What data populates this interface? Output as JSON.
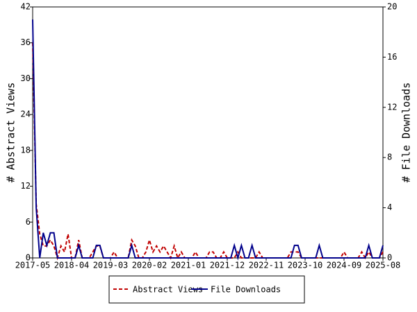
{
  "chart_data": {
    "type": "line",
    "ylabel": "# Abstract Views",
    "y2label": "# File Downloads",
    "x": [
      "2017-05",
      "2017-06",
      "2017-07",
      "2017-08",
      "2017-09",
      "2017-10",
      "2017-11",
      "2017-12",
      "2018-01",
      "2018-02",
      "2018-03",
      "2018-04",
      "2018-05",
      "2018-06",
      "2018-07",
      "2018-08",
      "2018-09",
      "2018-10",
      "2018-11",
      "2018-12",
      "2019-01",
      "2019-02",
      "2019-03",
      "2019-04",
      "2019-05",
      "2019-06",
      "2019-07",
      "2019-08",
      "2019-09",
      "2019-10",
      "2019-11",
      "2019-12",
      "2020-01",
      "2020-02",
      "2020-03",
      "2020-04",
      "2020-05",
      "2020-06",
      "2020-07",
      "2020-08",
      "2020-09",
      "2020-10",
      "2020-11",
      "2020-12",
      "2021-01",
      "2021-02",
      "2021-03",
      "2021-04",
      "2021-05",
      "2021-06",
      "2021-07",
      "2021-08",
      "2021-09",
      "2021-10",
      "2021-11",
      "2021-12",
      "2022-01",
      "2022-02",
      "2022-03",
      "2022-04",
      "2022-05",
      "2022-06",
      "2022-07",
      "2022-08",
      "2022-09",
      "2022-10",
      "2022-11",
      "2022-12",
      "2023-01",
      "2023-02",
      "2023-03",
      "2023-04",
      "2023-05",
      "2023-06",
      "2023-07",
      "2023-08",
      "2023-09",
      "2023-10",
      "2023-11",
      "2023-12",
      "2024-01",
      "2024-02",
      "2024-03",
      "2024-04",
      "2024-05",
      "2024-06",
      "2024-07",
      "2024-08",
      "2024-09",
      "2024-10",
      "2024-11",
      "2024-12",
      "2025-01",
      "2025-02",
      "2025-03",
      "2025-04",
      "2025-05",
      "2025-06",
      "2025-07",
      "2025-08"
    ],
    "xticks": [
      "2017-05",
      "2018-04",
      "2019-03",
      "2020-02",
      "2021-01",
      "2021-12",
      "2022-11",
      "2023-10",
      "2024-09",
      "2025-08"
    ],
    "ylim": [
      0,
      42
    ],
    "yticks": [
      0,
      6,
      12,
      18,
      24,
      30,
      36,
      42
    ],
    "y2lim": [
      0,
      20
    ],
    "y2ticks": [
      0,
      4,
      8,
      12,
      16,
      20
    ],
    "series": [
      {
        "name": "Abstract Views",
        "color": "#c00000",
        "dash": true,
        "values": [
          36,
          9,
          4,
          2,
          2,
          3,
          2,
          0,
          2,
          1,
          4,
          0,
          0,
          3,
          0,
          0,
          0,
          1,
          2,
          2,
          0,
          0,
          0,
          1,
          0,
          0,
          0,
          0,
          3,
          2,
          0,
          0,
          1,
          3,
          1,
          2,
          1,
          2,
          1,
          0,
          2,
          0,
          1,
          0,
          0,
          0,
          1,
          0,
          0,
          0,
          1,
          1,
          0,
          0,
          1,
          0,
          0,
          0,
          1,
          0,
          0,
          0,
          0,
          0,
          1,
          0,
          0,
          0,
          0,
          0,
          0,
          0,
          0,
          1,
          1,
          1,
          0,
          0,
          0,
          0,
          0,
          0,
          0,
          0,
          0,
          0,
          0,
          0,
          1,
          0,
          0,
          0,
          0,
          1,
          0,
          1,
          0,
          0,
          0,
          1
        ]
      },
      {
        "name": "File Downloads",
        "color": "#00008b",
        "axis": "y2",
        "values": [
          19,
          4,
          0,
          2,
          1,
          2,
          2,
          0,
          0,
          0,
          0,
          0,
          0,
          1,
          0,
          0,
          0,
          0,
          1,
          1,
          0,
          0,
          0,
          0,
          0,
          0,
          0,
          0,
          1,
          0,
          0,
          0,
          0,
          0,
          0,
          0,
          0,
          0,
          0,
          0,
          0,
          0,
          0,
          0,
          0,
          0,
          0,
          0,
          0,
          0,
          0,
          0,
          0,
          0,
          0,
          0,
          0,
          1,
          0,
          1,
          0,
          0,
          1,
          0,
          0,
          0,
          0,
          0,
          0,
          0,
          0,
          0,
          0,
          0,
          1,
          1,
          0,
          0,
          0,
          0,
          0,
          1,
          0,
          0,
          0,
          0,
          0,
          0,
          0,
          0,
          0,
          0,
          0,
          0,
          0,
          1,
          0,
          0,
          0,
          1
        ]
      }
    ]
  }
}
